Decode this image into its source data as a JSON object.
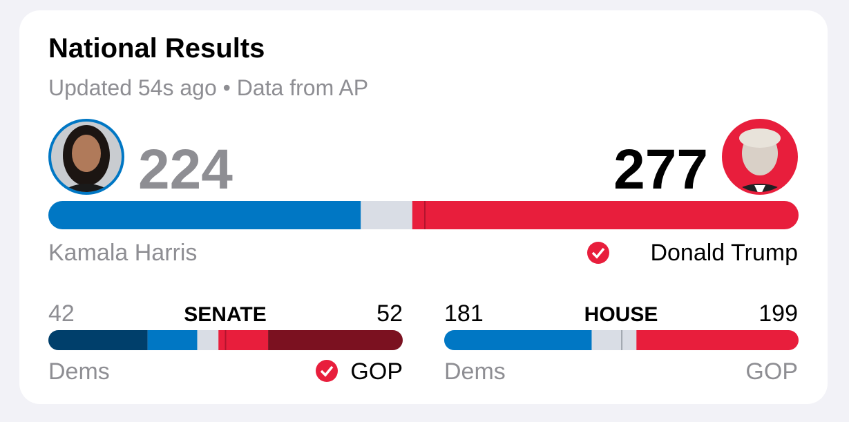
{
  "header": {
    "title": "National Results",
    "subtitle": "Updated 54s ago • Data from AP"
  },
  "president": {
    "xlim": [
      0,
      538
    ],
    "majority": 270,
    "dem": {
      "name": "Kamala Harris",
      "votes": 224,
      "color": "#0077c4"
    },
    "gop": {
      "name": "Donald Trump",
      "votes": 277,
      "color": "#e81e3c"
    }
  },
  "senate": {
    "label": "SENATE",
    "xlim": [
      0,
      100
    ],
    "majority": 50,
    "dem": {
      "label": "Dems",
      "total": 42,
      "segments": [
        28,
        14
      ],
      "colors": [
        "#003f6b",
        "#0077c4"
      ]
    },
    "gop": {
      "label": "GOP",
      "total": 52,
      "segments": [
        14,
        38
      ],
      "colors": [
        "#e81e3c",
        "#7b1120"
      ]
    }
  },
  "house": {
    "label": "HOUSE",
    "xlim": [
      0,
      435
    ],
    "majority": 218,
    "dem": {
      "label": "Dems",
      "total": 181,
      "color": "#0077c4"
    },
    "gop": {
      "label": "GOP",
      "total": 199,
      "color": "#e81e3c"
    }
  }
}
